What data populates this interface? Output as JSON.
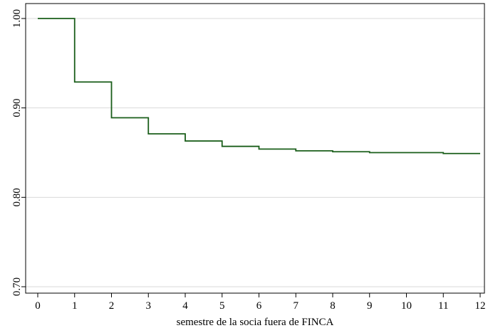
{
  "chart_data": {
    "type": "line",
    "step": true,
    "title": "",
    "xlabel": "semestre de la socia fuera de FINCA",
    "ylabel": "",
    "xlim": [
      0,
      12
    ],
    "ylim": [
      0.7,
      1.0
    ],
    "xticks": [
      0,
      1,
      2,
      3,
      4,
      5,
      6,
      7,
      8,
      9,
      10,
      11,
      12
    ],
    "xtick_labels": [
      "0",
      "1",
      "2",
      "3",
      "4",
      "5",
      "6",
      "7",
      "8",
      "9",
      "10",
      "11",
      "12"
    ],
    "yticks": [
      0.7,
      0.8,
      0.9,
      1.0
    ],
    "ytick_labels": [
      "0.70",
      "0.80",
      "0.90",
      "1.00"
    ],
    "grid": "horizontal",
    "series": [
      {
        "color": "#1a5e1a",
        "x": [
          0,
          1,
          2,
          3,
          4,
          5,
          6,
          7,
          8,
          9,
          10,
          11,
          12
        ],
        "y": [
          1.0,
          0.929,
          0.889,
          0.871,
          0.863,
          0.857,
          0.854,
          0.852,
          0.851,
          0.85,
          0.85,
          0.849,
          0.849
        ]
      }
    ]
  }
}
